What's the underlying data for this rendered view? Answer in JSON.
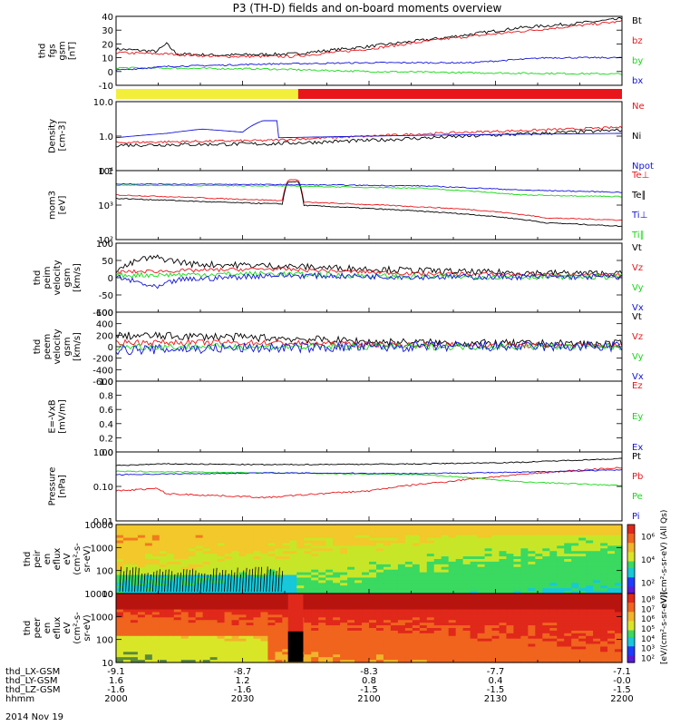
{
  "title": "P3 (TH-D) fields and on-board moments overview",
  "colors": {
    "black": "#000000",
    "red": "#e8161b",
    "green": "#16d916",
    "blue": "#1414d9",
    "yellow": "#f2ee3a"
  },
  "chart_data": [
    {
      "id": "p1",
      "type": "line",
      "ylabel": [
        "thd",
        "fgs",
        "gsm",
        "[nT]"
      ],
      "yticks": [
        "40",
        "30",
        "20",
        "10",
        "0",
        "-10"
      ],
      "ylim": [
        -13,
        42
      ],
      "scale": "linear",
      "legend": [
        {
          "label": "Bt",
          "color": "black"
        },
        {
          "label": "bz",
          "color": "red"
        },
        {
          "label": "by",
          "color": "green"
        },
        {
          "label": "bx",
          "color": "blue"
        }
      ],
      "series": [
        {
          "name": "Bt",
          "color": "black",
          "noise": 1.2,
          "x": [
            0,
            0.08,
            0.1,
            0.12,
            0.2,
            0.35,
            0.5,
            0.65,
            0.8,
            0.9,
            1.0
          ],
          "y": [
            16,
            14,
            20,
            12,
            11,
            12,
            18,
            25,
            33,
            36,
            40
          ]
        },
        {
          "name": "bz",
          "color": "red",
          "noise": 1.0,
          "x": [
            0,
            0.1,
            0.2,
            0.35,
            0.5,
            0.65,
            0.8,
            0.9,
            1.0
          ],
          "y": [
            13,
            12,
            10,
            10,
            16,
            24,
            30,
            34,
            38
          ]
        },
        {
          "name": "by",
          "color": "green",
          "noise": 0.7,
          "x": [
            0,
            0.3,
            0.5,
            0.7,
            1.0
          ],
          "y": [
            1,
            0,
            -2,
            -3,
            -4
          ]
        },
        {
          "name": "bx",
          "color": "blue",
          "noise": 0.6,
          "x": [
            0,
            0.1,
            0.3,
            0.5,
            0.7,
            0.85,
            1.0
          ],
          "y": [
            -1,
            2,
            4,
            5,
            5,
            9,
            9
          ]
        }
      ]
    },
    {
      "id": "bar",
      "type": "status-bar",
      "segments": [
        {
          "from": 0,
          "to": 0.36,
          "color": "yellow"
        },
        {
          "from": 0.36,
          "to": 1,
          "color": "red"
        }
      ]
    },
    {
      "id": "p2",
      "type": "line",
      "ylabel": [
        "Density",
        "[cm-3]"
      ],
      "yticks": [
        "10.0",
        "1.0",
        "0.1"
      ],
      "ylim": [
        0.1,
        10
      ],
      "scale": "log",
      "legend": [
        {
          "label": "Ne",
          "color": "red"
        },
        {
          "label": "Ni",
          "color": "black"
        },
        {
          "label": "Npot",
          "color": "blue"
        }
      ],
      "series": [
        {
          "name": "Ne",
          "color": "red",
          "noise": 0.04,
          "x": [
            0,
            0.3,
            0.5,
            0.7,
            0.9,
            1.0
          ],
          "y": [
            0.65,
            0.75,
            1.0,
            1.3,
            1.6,
            1.8
          ]
        },
        {
          "name": "Ni",
          "color": "black",
          "noise": 0.06,
          "x": [
            0,
            0.3,
            0.5,
            0.7,
            0.9,
            1.0
          ],
          "y": [
            0.55,
            0.6,
            0.75,
            1.0,
            1.3,
            1.5
          ]
        },
        {
          "name": "Npot",
          "color": "blue",
          "noise": 0.0,
          "x": [
            0,
            0.1,
            0.17,
            0.25,
            0.29,
            0.32,
            0.32,
            0.5,
            0.7,
            1.0
          ],
          "y": [
            0.9,
            1.2,
            1.6,
            1.3,
            2.8,
            2.8,
            0.9,
            1.0,
            1.1,
            1.2
          ]
        }
      ]
    },
    {
      "id": "p3",
      "type": "line",
      "ylabel": [
        "mom3",
        "[eV]"
      ],
      "yticks": [
        "10⁴",
        "10³",
        "10²"
      ],
      "ylim": [
        100,
        30000
      ],
      "scale": "log",
      "legend": [
        {
          "label": "Te⊥",
          "color": "red"
        },
        {
          "label": "Te∥",
          "color": "black"
        },
        {
          "label": "Ti⊥",
          "color": "blue"
        },
        {
          "label": "Ti∥",
          "color": "green"
        }
      ],
      "series": [
        {
          "name": "Te⊥",
          "color": "red",
          "noise": 0.02,
          "x": [
            0,
            0.2,
            0.33,
            0.34,
            0.36,
            0.37,
            0.5,
            0.7,
            0.85,
            1.0
          ],
          "y": [
            4000,
            3000,
            2500,
            14000,
            14000,
            2200,
            1800,
            1200,
            600,
            500
          ]
        },
        {
          "name": "Te∥",
          "color": "black",
          "noise": 0.02,
          "x": [
            0,
            0.2,
            0.33,
            0.34,
            0.36,
            0.37,
            0.5,
            0.7,
            0.85,
            1.0
          ],
          "y": [
            3000,
            2200,
            1900,
            12000,
            12000,
            1700,
            1300,
            800,
            400,
            300
          ]
        },
        {
          "name": "Ti⊥",
          "color": "blue",
          "noise": 0.02,
          "x": [
            0,
            0.3,
            0.6,
            0.8,
            1.0
          ],
          "y": [
            10000,
            9500,
            8500,
            6000,
            5000
          ]
        },
        {
          "name": "Ti∥",
          "color": "green",
          "noise": 0.02,
          "x": [
            0,
            0.3,
            0.6,
            0.8,
            1.0
          ],
          "y": [
            9000,
            8500,
            7000,
            4000,
            3500
          ]
        }
      ]
    },
    {
      "id": "p4",
      "type": "line",
      "ylabel": [
        "thd",
        "peim",
        "velocity",
        "gsm",
        "[km/s]"
      ],
      "yticks": [
        "100",
        "50",
        "0",
        "-50",
        "-100"
      ],
      "ylim": [
        -110,
        105
      ],
      "scale": "linear",
      "legend": [
        {
          "label": "Vt",
          "color": "black"
        },
        {
          "label": "Vz",
          "color": "red"
        },
        {
          "label": "Vy",
          "color": "green"
        },
        {
          "label": "Vx",
          "color": "blue"
        }
      ],
      "series": [
        {
          "name": "Vt",
          "color": "black",
          "noise": 10,
          "x": [
            0,
            0.05,
            0.08,
            0.15,
            0.3,
            0.5,
            0.7,
            1.0
          ],
          "y": [
            20,
            55,
            60,
            40,
            35,
            25,
            15,
            10
          ]
        },
        {
          "name": "Vz",
          "color": "red",
          "noise": 6,
          "x": [
            0,
            0.3,
            0.6,
            1.0
          ],
          "y": [
            15,
            25,
            10,
            5
          ]
        },
        {
          "name": "Vy",
          "color": "green",
          "noise": 8,
          "x": [
            0,
            0.3,
            0.6,
            1.0
          ],
          "y": [
            5,
            10,
            0,
            0
          ]
        },
        {
          "name": "Vx",
          "color": "blue",
          "noise": 9,
          "x": [
            0,
            0.05,
            0.08,
            0.12,
            0.3,
            0.6,
            1.0
          ],
          "y": [
            0,
            -20,
            -35,
            -10,
            5,
            0,
            0
          ]
        }
      ]
    },
    {
      "id": "p5",
      "type": "line",
      "ylabel": [
        "thd",
        "peem",
        "velocity",
        "gsm",
        "[km/s]"
      ],
      "yticks": [
        "600",
        "400",
        "200",
        "0",
        "-200",
        "-400",
        "-600"
      ],
      "ylim": [
        -620,
        620
      ],
      "scale": "linear",
      "legend": [
        {
          "label": "Vt",
          "color": "black"
        },
        {
          "label": "Vz",
          "color": "red"
        },
        {
          "label": "Vy",
          "color": "green"
        },
        {
          "label": "Vx",
          "color": "blue"
        }
      ],
      "series": [
        {
          "name": "Vt",
          "color": "black",
          "noise": 70,
          "x": [
            0,
            0.2,
            0.33,
            0.5,
            0.7,
            1.0
          ],
          "y": [
            200,
            180,
            150,
            90,
            60,
            50
          ]
        },
        {
          "name": "Vz",
          "color": "red",
          "noise": 50,
          "x": [
            0,
            0.3,
            0.6,
            1.0
          ],
          "y": [
            80,
            70,
            30,
            20
          ]
        },
        {
          "name": "Vy",
          "color": "green",
          "noise": 60,
          "x": [
            0,
            0.3,
            0.6,
            1.0
          ],
          "y": [
            0,
            0,
            0,
            0
          ]
        },
        {
          "name": "Vx",
          "color": "blue",
          "noise": 90,
          "x": [
            0,
            0.3,
            0.6,
            1.0
          ],
          "y": [
            -60,
            -20,
            0,
            0
          ]
        }
      ]
    },
    {
      "id": "p6",
      "type": "line",
      "ylabel": [
        "E=-VxB",
        "[mV/m]"
      ],
      "yticks": [
        "1.0",
        "0.8",
        "0.6",
        "0.4",
        "0.2",
        "0.0"
      ],
      "ylim": [
        0,
        1
      ],
      "scale": "linear",
      "legend": [
        {
          "label": "Ez",
          "color": "red"
        },
        {
          "label": "Ey",
          "color": "green"
        },
        {
          "label": "Ex",
          "color": "blue"
        }
      ],
      "series": []
    },
    {
      "id": "p7",
      "type": "line",
      "ylabel": [
        "Pressure",
        "[nPa]"
      ],
      "yticks": [
        "1.00",
        "0.10",
        "0.01"
      ],
      "ylim": [
        0.01,
        2
      ],
      "scale": "log",
      "legend": [
        {
          "label": "Pt",
          "color": "black"
        },
        {
          "label": "Pb",
          "color": "red"
        },
        {
          "label": "Pe",
          "color": "green"
        },
        {
          "label": "Pi",
          "color": "blue"
        }
      ],
      "series": [
        {
          "name": "Pt",
          "color": "black",
          "noise": 0.02,
          "x": [
            0,
            0.1,
            0.3,
            0.6,
            0.8,
            1.0
          ],
          "y": [
            0.7,
            0.8,
            0.75,
            0.8,
            0.9,
            1.2
          ]
        },
        {
          "name": "Pb",
          "color": "red",
          "noise": 0.03,
          "x": [
            0,
            0.08,
            0.1,
            0.3,
            0.5,
            0.65,
            0.8,
            1.0
          ],
          "y": [
            0.1,
            0.12,
            0.08,
            0.06,
            0.1,
            0.2,
            0.35,
            0.6
          ]
        },
        {
          "name": "Pe",
          "color": "green",
          "noise": 0.02,
          "x": [
            0,
            0.3,
            0.6,
            0.8,
            1.0
          ],
          "y": [
            0.45,
            0.4,
            0.35,
            0.2,
            0.15
          ]
        },
        {
          "name": "Pi",
          "color": "blue",
          "noise": 0.02,
          "x": [
            0,
            0.3,
            0.6,
            0.8,
            1.0
          ],
          "y": [
            0.35,
            0.4,
            0.38,
            0.42,
            0.5
          ]
        }
      ]
    },
    {
      "id": "p8",
      "type": "heatmap",
      "ylabel": [
        "thd",
        "peir",
        "en",
        "eflux",
        "eV",
        "(cm²-s-",
        "sr-eV)"
      ],
      "yticks": [
        "10000",
        "1000",
        "100",
        "10"
      ],
      "ylim": [
        5,
        30000
      ],
      "scale": "log",
      "colorbar": {
        "ticks": [
          "10⁶",
          "10⁴",
          "10²"
        ],
        "label": "eV/(cm²-s-sr-eV) (All Qs)"
      }
    },
    {
      "id": "p9",
      "type": "heatmap",
      "ylabel": [
        "thd",
        "peer",
        "en",
        "eflux",
        "eV",
        "(cm²-s-",
        "sr-eV)"
      ],
      "yticks": [
        "10000",
        "1000",
        "100",
        "10"
      ],
      "ylim": [
        5,
        30000
      ],
      "scale": "log",
      "colorbar": {
        "ticks": [
          "10⁸",
          "10⁷",
          "10⁶",
          "10⁵",
          "10⁴",
          "10³",
          "10²"
        ],
        "label": "[eV/(cm²-s-sr-eV)]"
      }
    }
  ],
  "x_axis": {
    "rows": [
      {
        "label": "thd_LX-GSM",
        "values": [
          "-9.1",
          "-8.7",
          "-8.3",
          "-7.7",
          "-7.1"
        ]
      },
      {
        "label": "thd_LY-GSM",
        "values": [
          "1.6",
          "1.2",
          "0.8",
          "0.4",
          "-0.0"
        ]
      },
      {
        "label": "thd_LZ-GSM",
        "values": [
          "-1.6",
          "-1.6",
          "-1.5",
          "-1.5",
          "-1.5"
        ]
      },
      {
        "label": "hhmm",
        "values": [
          "2000",
          "2030",
          "2100",
          "2130",
          "2200"
        ]
      }
    ],
    "date": "2014 Nov 19"
  }
}
